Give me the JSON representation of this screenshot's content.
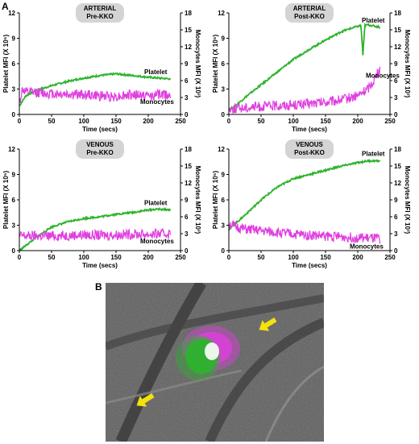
{
  "panels": {
    "a": "A",
    "b": "B"
  },
  "colors": {
    "platelet": "#2db32d",
    "monocytes": "#e03ee0",
    "label_bg": "#d4d4d4",
    "arrow": "#f5e20c"
  },
  "chart_data": [
    {
      "type": "line",
      "condition_line1": "ARTERIAL",
      "condition_line2": "Pre-KKO",
      "xlabel": "Time (secs)",
      "ylabel": "Platelet MFI (X 10⁵)",
      "y2label": "Monocytes MFI (X 10³)",
      "xlim": [
        0,
        250
      ],
      "ylim": [
        0,
        12
      ],
      "y2lim": [
        0,
        18
      ],
      "xticks": [
        0,
        50,
        100,
        150,
        200,
        250
      ],
      "yticks": [
        0,
        3,
        6,
        9,
        12
      ],
      "y2ticks": [
        0,
        3,
        6,
        9,
        12,
        15,
        18
      ],
      "series": [
        {
          "name": "Platelet",
          "axis": "left",
          "x": [
            0,
            10,
            25,
            50,
            75,
            100,
            125,
            150,
            175,
            200,
            215,
            235
          ],
          "values": [
            1.0,
            2.2,
            2.8,
            3.4,
            3.9,
            4.3,
            4.6,
            4.8,
            4.6,
            4.4,
            4.3,
            4.2
          ]
        },
        {
          "name": "Monocytes",
          "axis": "right",
          "x": [
            0,
            5,
            10,
            25,
            50,
            75,
            100,
            125,
            150,
            175,
            200,
            215,
            235
          ],
          "values": [
            2.0,
            4.5,
            3.9,
            3.9,
            3.7,
            3.6,
            3.5,
            3.3,
            3.2,
            3.5,
            3.3,
            3.5,
            3.6
          ]
        }
      ]
    },
    {
      "type": "line",
      "condition_line1": "ARTERIAL",
      "condition_line2": "Post-KKO",
      "xlabel": "Time (secs)",
      "ylabel": "Platelet MFI (X 10⁵)",
      "y2label": "Monocytes MFI (X 10³)",
      "xlim": [
        0,
        250
      ],
      "ylim": [
        0,
        12
      ],
      "y2lim": [
        0,
        18
      ],
      "xticks": [
        0,
        50,
        100,
        150,
        200,
        250
      ],
      "yticks": [
        0,
        3,
        6,
        9,
        12
      ],
      "y2ticks": [
        0,
        3,
        6,
        9,
        12,
        15,
        18
      ],
      "series": [
        {
          "name": "Platelet",
          "axis": "left",
          "x": [
            0,
            10,
            25,
            50,
            75,
            100,
            125,
            150,
            175,
            195,
            205,
            208,
            211,
            215,
            235
          ],
          "values": [
            0.5,
            1.0,
            2.0,
            3.5,
            5.0,
            6.5,
            7.7,
            8.8,
            9.8,
            10.3,
            10.5,
            7.0,
            10.5,
            10.6,
            10.3
          ]
        },
        {
          "name": "Monocytes",
          "axis": "right",
          "x": [
            0,
            25,
            50,
            100,
            150,
            175,
            200,
            215,
            225,
            235
          ],
          "values": [
            1.0,
            1.2,
            1.4,
            1.7,
            2.1,
            2.6,
            3.3,
            4.5,
            6.0,
            8.2
          ]
        }
      ]
    },
    {
      "type": "line",
      "condition_line1": "VENOUS",
      "condition_line2": "Pre-KKO",
      "xlabel": "Time (secs)",
      "ylabel": "Platelet MFI (X 10⁵)",
      "y2label": "Monocytes MFI (X 10³)",
      "xlim": [
        0,
        250
      ],
      "ylim": [
        0,
        12
      ],
      "y2lim": [
        0,
        18
      ],
      "xticks": [
        0,
        50,
        100,
        150,
        200,
        250
      ],
      "yticks": [
        0,
        3,
        6,
        9,
        12
      ],
      "y2ticks": [
        0,
        3,
        6,
        9,
        12,
        15,
        18
      ],
      "series": [
        {
          "name": "Platelet",
          "axis": "left",
          "x": [
            0,
            25,
            50,
            75,
            100,
            125,
            150,
            175,
            200,
            215,
            235
          ],
          "values": [
            0,
            1.5,
            2.8,
            3.4,
            3.8,
            4.0,
            4.3,
            4.5,
            4.8,
            4.9,
            4.8
          ]
        },
        {
          "name": "Monocytes",
          "axis": "right",
          "x": [
            0,
            5,
            10,
            25,
            50,
            75,
            100,
            125,
            150,
            175,
            200,
            235
          ],
          "values": [
            2.5,
            2.7,
            2.6,
            2.6,
            2.6,
            2.7,
            2.8,
            2.7,
            2.8,
            2.9,
            2.9,
            3.0
          ]
        }
      ]
    },
    {
      "type": "line",
      "condition_line1": "VENOUS",
      "condition_line2": "Post-KKO",
      "xlabel": "Time (secs)",
      "ylabel": "Platelet MFI (X 10⁵)",
      "y2label": "Monocytes MFI (X 10³)",
      "xlim": [
        0,
        250
      ],
      "ylim": [
        0,
        12
      ],
      "y2lim": [
        0,
        18
      ],
      "xticks": [
        0,
        50,
        100,
        150,
        200,
        250
      ],
      "yticks": [
        0,
        3,
        6,
        9,
        12
      ],
      "y2ticks": [
        0,
        3,
        6,
        9,
        12,
        15,
        18
      ],
      "series": [
        {
          "name": "Platelet",
          "axis": "left",
          "x": [
            0,
            10,
            25,
            50,
            75,
            100,
            125,
            150,
            175,
            200,
            215,
            235
          ],
          "values": [
            2.5,
            3.2,
            4.2,
            6.0,
            7.5,
            8.5,
            9.0,
            9.5,
            10.0,
            10.4,
            10.6,
            10.6
          ]
        },
        {
          "name": "Monocytes",
          "axis": "right",
          "x": [
            0,
            10,
            25,
            50,
            100,
            150,
            200,
            235
          ],
          "values": [
            4.8,
            4.2,
            3.8,
            3.5,
            2.9,
            2.6,
            2.3,
            2.1
          ]
        }
      ]
    }
  ]
}
